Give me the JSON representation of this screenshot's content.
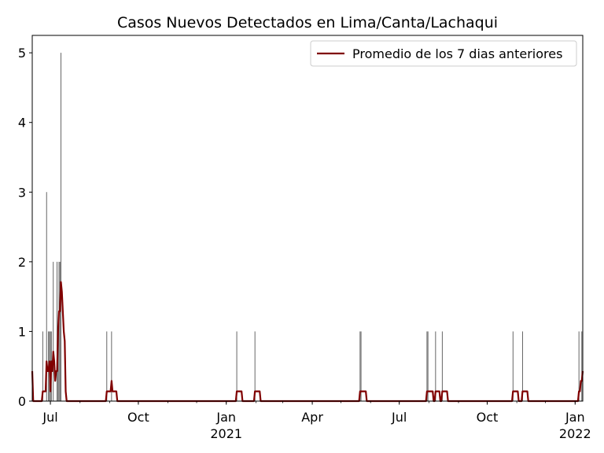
{
  "chart_data": {
    "type": "bar",
    "title": "Casos Nuevos Detectados en Lima/Canta/Lachaqui",
    "xlabel": "",
    "ylabel": "",
    "x_range": [
      "2020-06-12",
      "2022-01-09"
    ],
    "ylim": [
      0,
      5.25
    ],
    "y_ticks": [
      0,
      1,
      2,
      3,
      4,
      5
    ],
    "x_ticks": [
      {
        "date": "2020-07-01",
        "label": "Jul",
        "year": ""
      },
      {
        "date": "2020-10-01",
        "label": "Oct",
        "year": ""
      },
      {
        "date": "2021-01-01",
        "label": "Jan",
        "year": "2021"
      },
      {
        "date": "2021-04-01",
        "label": "Apr",
        "year": ""
      },
      {
        "date": "2021-07-01",
        "label": "Jul",
        "year": ""
      },
      {
        "date": "2021-10-01",
        "label": "Oct",
        "year": ""
      },
      {
        "date": "2022-01-01",
        "label": "Jan",
        "year": "2022"
      }
    ],
    "grid": false,
    "legend_position": "top-right",
    "bar_color": "#555555",
    "line_color": "#800000",
    "series": [
      {
        "type": "bar",
        "points": [
          [
            "2020-06-12",
            0
          ],
          [
            "2020-06-23",
            1
          ],
          [
            "2020-06-27",
            3
          ],
          [
            "2020-06-29",
            1
          ],
          [
            "2020-06-30",
            1
          ],
          [
            "2020-07-01",
            1
          ],
          [
            "2020-07-02",
            1
          ],
          [
            "2020-07-04",
            2
          ],
          [
            "2020-07-08",
            2
          ],
          [
            "2020-07-09",
            1
          ],
          [
            "2020-07-10",
            2
          ],
          [
            "2020-07-11",
            2
          ],
          [
            "2020-07-12",
            5
          ],
          [
            "2020-08-29",
            1
          ],
          [
            "2020-09-03",
            1
          ],
          [
            "2021-01-12",
            1
          ],
          [
            "2021-01-31",
            1
          ],
          [
            "2021-05-21",
            1
          ],
          [
            "2021-05-22",
            1
          ],
          [
            "2021-07-30",
            1
          ],
          [
            "2021-07-31",
            1
          ],
          [
            "2021-08-08",
            1
          ],
          [
            "2021-08-15",
            1
          ],
          [
            "2021-10-28",
            1
          ],
          [
            "2021-11-07",
            1
          ],
          [
            "2022-01-05",
            1
          ],
          [
            "2022-01-08",
            1
          ],
          [
            "2022-01-09",
            1
          ]
        ]
      },
      {
        "type": "line",
        "name": "Promedio de los 7 dias anteriores",
        "points": [
          [
            "2020-06-12",
            0.43
          ],
          [
            "2020-06-13",
            0
          ],
          [
            "2020-06-22",
            0
          ],
          [
            "2020-06-23",
            0.14
          ],
          [
            "2020-06-26",
            0.14
          ],
          [
            "2020-06-27",
            0.57
          ],
          [
            "2020-06-28",
            0.43
          ],
          [
            "2020-06-29",
            0.43
          ],
          [
            "2020-06-30",
            0.57
          ],
          [
            "2020-07-01",
            0.14
          ],
          [
            "2020-07-02",
            0.57
          ],
          [
            "2020-07-03",
            0.43
          ],
          [
            "2020-07-04",
            0.71
          ],
          [
            "2020-07-05",
            0.57
          ],
          [
            "2020-07-06",
            0.29
          ],
          [
            "2020-07-07",
            0.43
          ],
          [
            "2020-07-08",
            0.43
          ],
          [
            "2020-07-09",
            1.0
          ],
          [
            "2020-07-10",
            1.29
          ],
          [
            "2020-07-11",
            1.29
          ],
          [
            "2020-07-12",
            1.71
          ],
          [
            "2020-07-13",
            1.57
          ],
          [
            "2020-07-15",
            1.0
          ],
          [
            "2020-07-16",
            0.86
          ],
          [
            "2020-07-17",
            0.14
          ],
          [
            "2020-07-18",
            0
          ],
          [
            "2020-08-28",
            0
          ],
          [
            "2020-08-29",
            0.14
          ],
          [
            "2020-09-02",
            0.14
          ],
          [
            "2020-09-03",
            0.29
          ],
          [
            "2020-09-04",
            0.14
          ],
          [
            "2020-09-08",
            0.14
          ],
          [
            "2020-09-09",
            0
          ],
          [
            "2021-01-11",
            0
          ],
          [
            "2021-01-12",
            0.14
          ],
          [
            "2021-01-17",
            0.14
          ],
          [
            "2021-01-18",
            0
          ],
          [
            "2021-01-30",
            0
          ],
          [
            "2021-01-31",
            0.14
          ],
          [
            "2021-02-05",
            0.14
          ],
          [
            "2021-02-06",
            0
          ],
          [
            "2021-05-20",
            0
          ],
          [
            "2021-05-21",
            0.14
          ],
          [
            "2021-05-27",
            0.14
          ],
          [
            "2021-05-28",
            0
          ],
          [
            "2021-07-29",
            0
          ],
          [
            "2021-07-30",
            0.14
          ],
          [
            "2021-08-05",
            0.14
          ],
          [
            "2021-08-06",
            0
          ],
          [
            "2021-08-07",
            0
          ],
          [
            "2021-08-08",
            0.14
          ],
          [
            "2021-08-12",
            0.14
          ],
          [
            "2021-08-13",
            0
          ],
          [
            "2021-08-14",
            0
          ],
          [
            "2021-08-15",
            0.14
          ],
          [
            "2021-08-20",
            0.14
          ],
          [
            "2021-08-21",
            0
          ],
          [
            "2021-10-27",
            0
          ],
          [
            "2021-10-28",
            0.14
          ],
          [
            "2021-11-02",
            0.14
          ],
          [
            "2021-11-03",
            0
          ],
          [
            "2021-11-06",
            0
          ],
          [
            "2021-11-07",
            0.14
          ],
          [
            "2021-11-12",
            0.14
          ],
          [
            "2021-11-13",
            0
          ],
          [
            "2022-01-04",
            0
          ],
          [
            "2022-01-05",
            0.14
          ],
          [
            "2022-01-06",
            0.14
          ],
          [
            "2022-01-07",
            0.29
          ],
          [
            "2022-01-08",
            0.29
          ],
          [
            "2022-01-09",
            0.43
          ]
        ]
      }
    ]
  }
}
